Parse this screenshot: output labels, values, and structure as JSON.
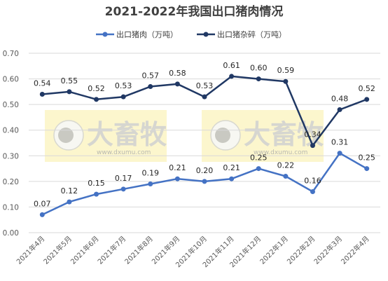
{
  "chart_data": {
    "type": "line",
    "title": "2021-2022年我国出口猪肉情况",
    "categories": [
      "2021年4月",
      "2021年5月",
      "2021年6月",
      "2021年7月",
      "2021年8月",
      "2021年9月",
      "2021年10月",
      "2021年11月",
      "2021年12月",
      "2022年1月",
      "2022年2月",
      "2022年3月",
      "2022年4月"
    ],
    "series": [
      {
        "name": "出口猪肉（万吨）",
        "color": "#4472c4",
        "values": [
          0.07,
          0.12,
          0.15,
          0.17,
          0.19,
          0.21,
          0.2,
          0.21,
          0.25,
          0.22,
          0.16,
          0.31,
          0.25
        ],
        "labels": [
          "0.07",
          "0.12",
          "0.15",
          "0.17",
          "0.19",
          "0.21",
          "0.20",
          "0.21",
          "0.25",
          "0.22",
          "0.16",
          "0.31",
          "0.25"
        ]
      },
      {
        "name": "出口猪杂碎（万吨）",
        "color": "#203864",
        "values": [
          0.54,
          0.55,
          0.52,
          0.53,
          0.57,
          0.58,
          0.53,
          0.61,
          0.6,
          0.59,
          0.34,
          0.48,
          0.52
        ],
        "labels": [
          "0.54",
          "0.55",
          "0.52",
          "0.53",
          "0.57",
          "0.58",
          "0.53",
          "0.61",
          "0.60",
          "0.59",
          "0.34",
          "0.48",
          "0.52"
        ]
      }
    ],
    "yticks": [
      "0.00",
      "0.10",
      "0.20",
      "0.30",
      "0.40",
      "0.50",
      "0.60",
      "0.70"
    ],
    "ylim": [
      0,
      0.7
    ],
    "legend_position": "top",
    "grid": true,
    "watermark": {
      "text": "大畜牧",
      "url": "www.dxumu.com"
    }
  }
}
